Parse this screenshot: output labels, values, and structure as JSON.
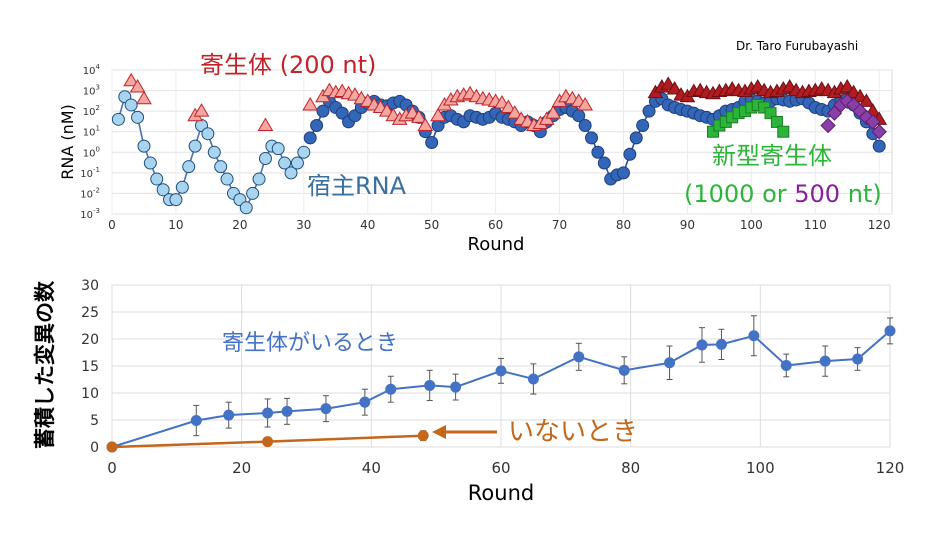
{
  "credit": "Dr. Taro Furubayashi",
  "chart_data": [
    {
      "type": "scatter",
      "yscale": "log",
      "xlabel": "Round",
      "ylabel": "RNA (nM)",
      "xlim": [
        0,
        122
      ],
      "xticks": [
        0,
        10,
        20,
        30,
        40,
        50,
        60,
        70,
        80,
        90,
        100,
        110,
        120
      ],
      "yticks": [
        {
          "value": 0.001,
          "base": "10",
          "exp": "-3"
        },
        {
          "value": 0.01,
          "base": "10",
          "exp": "-2"
        },
        {
          "value": 0.1,
          "base": "10",
          "exp": "-1"
        },
        {
          "value": 1,
          "base": "10",
          "exp": "0"
        },
        {
          "value": 10,
          "base": "10",
          "exp": "1"
        },
        {
          "value": 100,
          "base": "10",
          "exp": "2"
        },
        {
          "value": 1000,
          "base": "10",
          "exp": "3"
        },
        {
          "value": 10000,
          "base": "10",
          "exp": "4"
        }
      ],
      "grid": true,
      "annotations": [
        {
          "text": "寄生体 (200 nt)",
          "color": "#c0242a"
        },
        {
          "text": "宿主RNA",
          "color": "#3a6f9f"
        },
        {
          "text": "新型寄生体",
          "color": "#2db53a"
        }
      ],
      "annotation_line": {
        "parts": [
          {
            "text": "(1000 or ",
            "color": "#2db53a"
          },
          {
            "text": "500",
            "color": "#8a1f9c"
          },
          {
            "text": " nt)",
            "color": "#2db53a"
          }
        ]
      },
      "series": [
        {
          "marker": "circle",
          "fill": "#a9d4ef",
          "stroke": "#1f4e79",
          "line": "#4b6fb3",
          "x": [
            1,
            2,
            3,
            4,
            5,
            6,
            7,
            8,
            9,
            10,
            11,
            12,
            13,
            14,
            15,
            16,
            17,
            18,
            19,
            20,
            21,
            22,
            23,
            24,
            25,
            26,
            27,
            28,
            29,
            30
          ],
          "y": [
            40,
            500,
            200,
            50,
            2,
            0.3,
            0.05,
            0.015,
            0.005,
            0.005,
            0.02,
            0.2,
            2,
            20,
            8,
            1,
            0.2,
            0.05,
            0.01,
            0.005,
            0.002,
            0.01,
            0.05,
            0.5,
            2,
            1.5,
            0.3,
            0.1,
            0.3,
            1
          ]
        },
        {
          "marker": "circle",
          "fill": "#3366b8",
          "stroke": "#1f3f7a",
          "line": "#2a4f99",
          "x": [
            31,
            32,
            33,
            34,
            35,
            36,
            37,
            38,
            39,
            40,
            41,
            42,
            43,
            44,
            45,
            46,
            47,
            48,
            49,
            50,
            51,
            52,
            53,
            54,
            55,
            56,
            57,
            58,
            59,
            60,
            61,
            62,
            63,
            64,
            65,
            66,
            67,
            68,
            69,
            70,
            71,
            72,
            73,
            74,
            75,
            76,
            77,
            78,
            79,
            80,
            81,
            82,
            83,
            84,
            85,
            86,
            87,
            88,
            89,
            90,
            91,
            92,
            93,
            94,
            95,
            96,
            97,
            98,
            99,
            100,
            101,
            102,
            103,
            104,
            105,
            106,
            107,
            108,
            109,
            110,
            111,
            112,
            113,
            114,
            115,
            116,
            117,
            118,
            119,
            120
          ],
          "y": [
            5,
            20,
            100,
            300,
            150,
            80,
            30,
            60,
            150,
            250,
            300,
            200,
            180,
            250,
            300,
            200,
            100,
            50,
            10,
            3,
            20,
            50,
            60,
            40,
            30,
            60,
            50,
            40,
            50,
            80,
            50,
            40,
            30,
            20,
            30,
            20,
            10,
            30,
            60,
            120,
            150,
            100,
            60,
            20,
            5,
            1,
            0.3,
            0.05,
            0.08,
            0.1,
            0.8,
            5,
            20,
            100,
            300,
            400,
            200,
            150,
            120,
            100,
            80,
            60,
            50,
            40,
            60,
            100,
            120,
            150,
            300,
            350,
            300,
            250,
            300,
            400,
            350,
            300,
            350,
            400,
            250,
            150,
            120,
            100,
            200,
            300,
            400,
            200,
            80,
            30,
            8,
            2
          ]
        },
        {
          "marker": "triangle",
          "fill": "#f4a6a0",
          "stroke": "#c0242a",
          "x": [
            3,
            4,
            5,
            13,
            14,
            24,
            31,
            33,
            34,
            35,
            36,
            37,
            38,
            39,
            40,
            41,
            42,
            43,
            44,
            45,
            46,
            47,
            48,
            49,
            51,
            52,
            53,
            54,
            55,
            56,
            57,
            58,
            59,
            60,
            61,
            62,
            63,
            64,
            65,
            66,
            67,
            68,
            69,
            70,
            71,
            72,
            73,
            74
          ],
          "y": [
            3000,
            1500,
            400,
            60,
            100,
            20,
            200,
            500,
            1000,
            800,
            900,
            700,
            600,
            400,
            300,
            200,
            150,
            100,
            60,
            40,
            60,
            80,
            50,
            20,
            60,
            200,
            350,
            500,
            600,
            700,
            500,
            400,
            350,
            300,
            250,
            150,
            80,
            40,
            30,
            20,
            25,
            40,
            80,
            300,
            500,
            400,
            300,
            200
          ]
        },
        {
          "marker": "triangle",
          "fill": "#b01c20",
          "stroke": "#6e0f12",
          "x": [
            85,
            86,
            87,
            88,
            89,
            90,
            91,
            92,
            93,
            94,
            95,
            96,
            97,
            98,
            99,
            100,
            101,
            102,
            103,
            104,
            105,
            106,
            107,
            108,
            109,
            110,
            111,
            112,
            113,
            114,
            115,
            116,
            117,
            118,
            119,
            120
          ],
          "y": [
            800,
            1500,
            2000,
            1200,
            600,
            500,
            900,
            1000,
            800,
            700,
            900,
            1000,
            1200,
            1000,
            900,
            1200,
            1500,
            1000,
            800,
            900,
            1200,
            1500,
            1000,
            800,
            900,
            1000,
            1200,
            1000,
            800,
            1200,
            1500,
            800,
            500,
            300,
            100,
            40
          ]
        },
        {
          "marker": "square",
          "fill": "#2db53a",
          "stroke": "#1a7d24",
          "x": [
            94,
            95,
            96,
            97,
            98,
            99,
            100,
            101,
            102,
            103,
            104,
            105
          ],
          "y": [
            10,
            20,
            30,
            50,
            80,
            100,
            150,
            200,
            150,
            80,
            30,
            10
          ]
        },
        {
          "marker": "diamond",
          "fill": "#8a3fa6",
          "stroke": "#5b1f72",
          "x": [
            112,
            113,
            114,
            115,
            116,
            117,
            118,
            119,
            120
          ],
          "y": [
            20,
            80,
            200,
            300,
            200,
            100,
            50,
            30,
            10
          ]
        }
      ]
    },
    {
      "type": "line",
      "xlabel": "Round",
      "ylabel": "蓄積した変異の数",
      "xlim": [
        0,
        120
      ],
      "ylim": [
        0,
        30
      ],
      "xticks": [
        0,
        20,
        40,
        60,
        80,
        100,
        120
      ],
      "yticks": [
        0,
        5,
        10,
        15,
        20,
        25,
        30
      ],
      "grid": true,
      "series": [
        {
          "name": "寄生体がいるとき",
          "color": "#4472c4",
          "x": [
            0,
            13,
            18,
            24,
            27,
            33,
            39,
            43,
            49,
            53,
            60,
            65,
            72,
            79,
            86,
            91,
            94,
            99,
            104,
            110,
            115,
            120
          ],
          "y": [
            0,
            4.9,
            5.9,
            6.3,
            6.6,
            7.1,
            8.3,
            10.7,
            11.4,
            11.1,
            14.1,
            12.6,
            16.7,
            14.2,
            15.6,
            18.9,
            19.0,
            20.6,
            15.1,
            15.9,
            16.3,
            21.5
          ],
          "err": [
            0,
            2.8,
            2.4,
            2.6,
            2.4,
            2.4,
            2.4,
            2.4,
            2.8,
            2.4,
            2.3,
            2.8,
            2.5,
            2.5,
            3.1,
            3.2,
            2.8,
            3.7,
            2.1,
            2.8,
            2.1,
            2.4
          ]
        },
        {
          "name": "いないとき",
          "color": "#c5671b",
          "x": [
            0,
            24,
            48
          ],
          "y": [
            0,
            1.0,
            2.1
          ],
          "err": [
            0,
            0,
            0.9
          ]
        }
      ]
    }
  ]
}
